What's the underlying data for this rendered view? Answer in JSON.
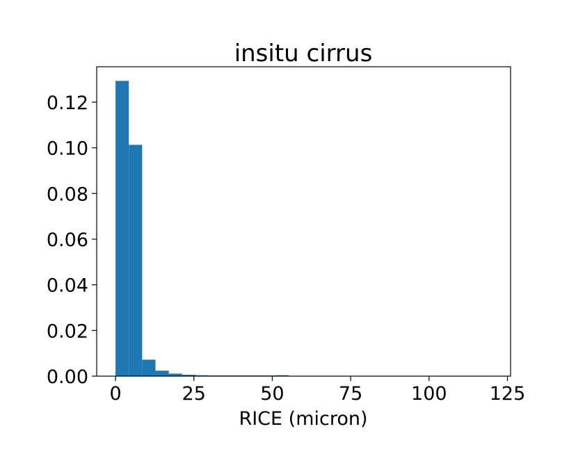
{
  "chart_data": {
    "type": "bar",
    "title": "insitu cirrus",
    "xlabel": "RICE (micron)",
    "ylabel": "",
    "xlim": [
      -6,
      126
    ],
    "ylim": [
      0,
      0.1355
    ],
    "xticks": [
      0,
      25,
      50,
      75,
      100,
      125
    ],
    "xtick_labels": [
      "0",
      "25",
      "50",
      "75",
      "100",
      "125"
    ],
    "yticks": [
      0.0,
      0.02,
      0.04,
      0.06,
      0.08,
      0.1,
      0.12
    ],
    "ytick_labels": [
      "0.00",
      "0.02",
      "0.04",
      "0.06",
      "0.08",
      "0.10",
      "0.12"
    ],
    "bar_color": "#1f77b4",
    "grid": false,
    "bin_edges": [
      0,
      4.25,
      8.5,
      12.75,
      17,
      21.25,
      25.5,
      29.75,
      34,
      38.25,
      42.5,
      46.75,
      51,
      55.25
    ],
    "values": [
      0.1293,
      0.1013,
      0.0072,
      0.0024,
      0.0011,
      0.0006,
      0.0004,
      0.0003,
      0.0003,
      0.0003,
      0.0003,
      0.0003,
      0.0004
    ]
  }
}
